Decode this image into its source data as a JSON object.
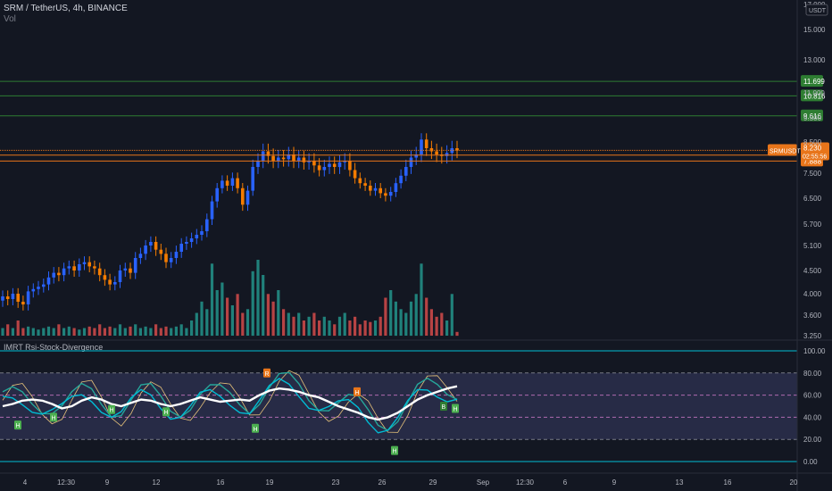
{
  "header": {
    "title": "SRM / TetherUS, 4h, BINANCE",
    "volume_label": "Vol"
  },
  "price_axis": {
    "currency": "USDT",
    "ticks": [
      "17.000",
      "15.000",
      "13.000",
      "11.000",
      "9.500",
      "8.500",
      "7.500",
      "6.500",
      "5.700",
      "5.100",
      "4.500",
      "4.000",
      "3.600",
      "3.250"
    ],
    "tick_values": [
      17.0,
      15.0,
      13.0,
      11.0,
      9.5,
      8.5,
      7.5,
      6.5,
      5.7,
      5.1,
      4.5,
      4.0,
      3.6,
      3.25
    ]
  },
  "horizontal_levels": [
    {
      "label": "11.699",
      "value": 11.699,
      "color": "#2e7d32",
      "kind": "green"
    },
    {
      "label": "10.816",
      "value": 10.816,
      "color": "#2e7d32",
      "kind": "green"
    },
    {
      "label": "9.616",
      "value": 9.616,
      "color": "#2e7d32",
      "kind": "green"
    },
    {
      "label": "8.081",
      "value": 8.081,
      "color": "#e8751a",
      "kind": "orange"
    },
    {
      "label": "7.888",
      "value": 7.888,
      "color": "#e8751a",
      "kind": "orange"
    }
  ],
  "current_price": {
    "symbol": "SRMUSDT",
    "value": "8.230",
    "countdown": "02:55:56",
    "color": "#e8751a"
  },
  "indicator": {
    "title": "IMRT Rsi-Stock-Divergence",
    "ticks": [
      "100.00",
      "80.00",
      "60.00",
      "40.00",
      "20.00",
      "0.00"
    ],
    "tick_values": [
      100,
      80,
      60,
      40,
      20,
      0
    ]
  },
  "time_axis": {
    "labels": [
      "4",
      "12:30",
      "9",
      "12",
      "16",
      "19",
      "23",
      "26",
      "29",
      "Sep",
      "12:30",
      "6",
      "9",
      "13",
      "16",
      "20"
    ]
  },
  "colors": {
    "background": "#131722",
    "up": "#2962ff",
    "down": "#f57c00",
    "vol_up": "#26a69a",
    "vol_down": "#ef5350",
    "band_fill": "#2a2e4a",
    "axis_text": "#b2b5be",
    "cyan_line": "#00bcd4"
  },
  "divergence_markers": [
    "H",
    "H",
    "H",
    "H",
    "H",
    "H",
    "R",
    "H",
    "B",
    "H"
  ],
  "chart_data": {
    "type": "candlestick",
    "title": "SRM / TetherUS, 4h, BINANCE",
    "price_range": [
      3.25,
      17.0
    ],
    "close_series": [
      3.95,
      3.9,
      4.0,
      3.85,
      3.8,
      4.05,
      4.1,
      4.15,
      4.2,
      4.35,
      4.45,
      4.4,
      4.55,
      4.6,
      4.5,
      4.65,
      4.7,
      4.6,
      4.55,
      4.4,
      4.3,
      4.2,
      4.25,
      4.5,
      4.55,
      4.45,
      4.8,
      4.9,
      5.1,
      5.2,
      5.0,
      4.9,
      4.7,
      4.8,
      4.95,
      5.15,
      5.2,
      5.3,
      5.4,
      5.5,
      5.85,
      6.4,
      6.9,
      7.2,
      7.0,
      7.3,
      6.9,
      6.3,
      6.8,
      7.7,
      7.9,
      8.2,
      8.05,
      7.9,
      8.0,
      7.95,
      8.1,
      7.9,
      8.0,
      7.85,
      7.9,
      7.75,
      7.6,
      7.7,
      7.8,
      7.7,
      7.85,
      7.9,
      7.6,
      7.3,
      7.1,
      7.0,
      6.8,
      6.9,
      6.7,
      6.6,
      6.75,
      7.1,
      7.4,
      7.7,
      8.0,
      8.1,
      8.6,
      8.3,
      8.2,
      8.1,
      8.05,
      8.15,
      8.3,
      8.23
    ],
    "volume_relative": [
      0.1,
      0.15,
      0.1,
      0.2,
      0.1,
      0.12,
      0.1,
      0.08,
      0.1,
      0.12,
      0.1,
      0.15,
      0.1,
      0.12,
      0.1,
      0.08,
      0.1,
      0.12,
      0.1,
      0.15,
      0.1,
      0.12,
      0.1,
      0.15,
      0.1,
      0.12,
      0.15,
      0.1,
      0.12,
      0.1,
      0.15,
      0.1,
      0.12,
      0.1,
      0.12,
      0.15,
      0.1,
      0.2,
      0.3,
      0.45,
      0.35,
      0.95,
      0.6,
      0.7,
      0.5,
      0.4,
      0.55,
      0.3,
      0.35,
      0.85,
      1.0,
      0.8,
      0.55,
      0.45,
      0.6,
      0.35,
      0.3,
      0.25,
      0.3,
      0.2,
      0.25,
      0.3,
      0.2,
      0.25,
      0.2,
      0.15,
      0.25,
      0.3,
      0.2,
      0.25,
      0.15,
      0.2,
      0.18,
      0.2,
      0.25,
      0.5,
      0.6,
      0.45,
      0.35,
      0.3,
      0.45,
      0.55,
      0.95,
      0.5,
      0.35,
      0.25,
      0.3,
      0.2,
      0.55,
      0.05
    ],
    "indicator_range": [
      0,
      100
    ],
    "indicator_bands": {
      "upper": 80,
      "middle": 60,
      "lower": 40,
      "outer_upper": 100,
      "outer_lower": 20
    },
    "indicator_ma_white": [
      50,
      52,
      55,
      56,
      55,
      52,
      48,
      50,
      55,
      58,
      56,
      52,
      50,
      53,
      56,
      55,
      52,
      50,
      52,
      55,
      58,
      56,
      54,
      55,
      56,
      55,
      60,
      64,
      66,
      65,
      63,
      60,
      58,
      54,
      50,
      47,
      44,
      40,
      38,
      40,
      44,
      50,
      56,
      60,
      63,
      66,
      68
    ]
  }
}
